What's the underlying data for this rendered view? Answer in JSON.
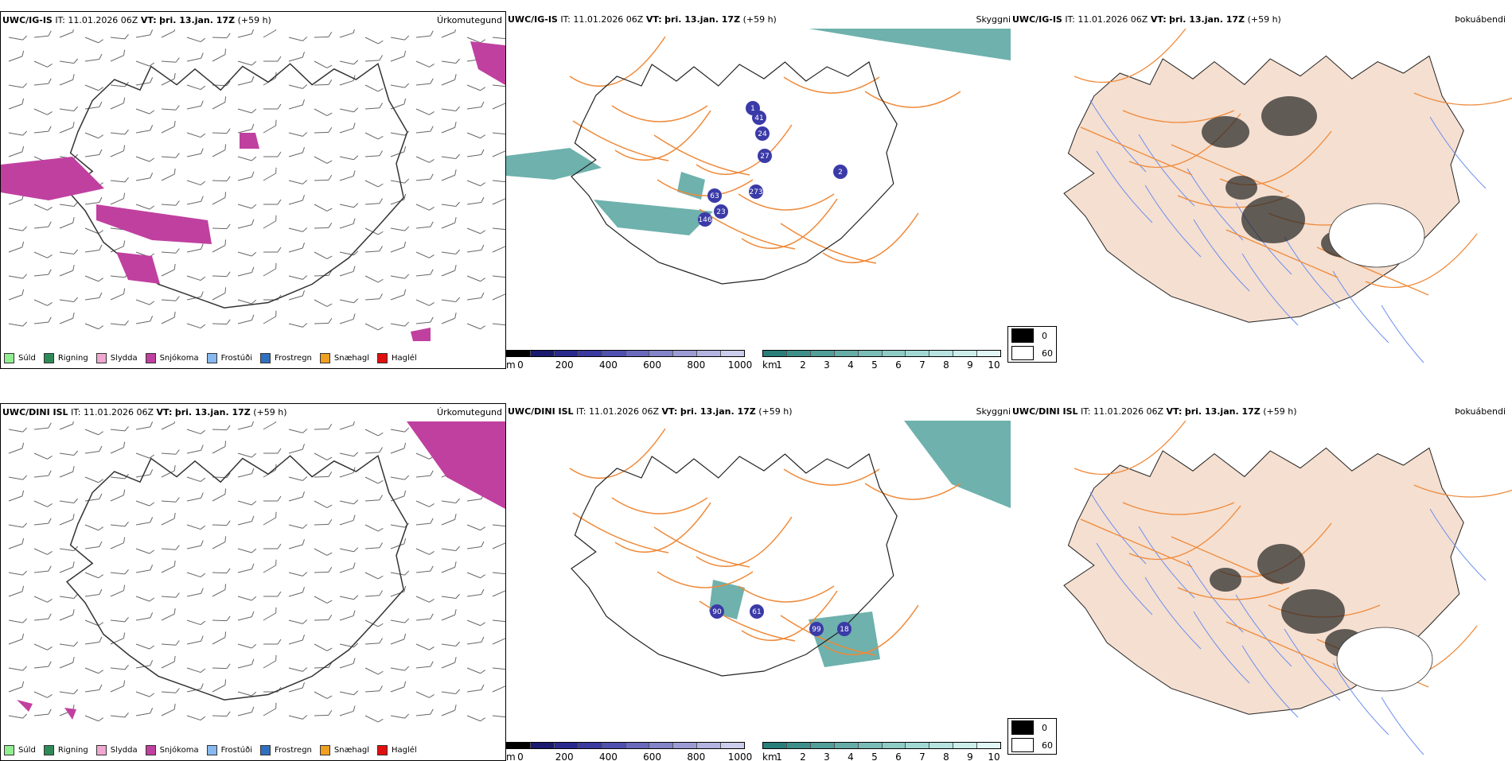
{
  "rows": [
    {
      "model": "UWC/IG-IS",
      "it_label": "IT:",
      "it": "11.01.2026 06Z",
      "vt_label": "VT:",
      "vt": "þri. 13.jan. 17Z",
      "lead": "(+59 h)",
      "titles": {
        "precip": "Úrkomutegund",
        "vis": "Skyggni",
        "cloud": "Þokuábendi"
      },
      "cloudtop_labels": [
        "1",
        "41",
        "24",
        "27",
        "63",
        "23",
        "146",
        "273",
        "2"
      ]
    },
    {
      "model": "UWC/DINI ISL",
      "it_label": "IT:",
      "it": "11.01.2026 06Z",
      "vt_label": "VT:",
      "vt": "þri. 13.jan. 17Z",
      "lead": "(+59 h)",
      "titles": {
        "precip": "Úrkomutegund",
        "vis": "Skyggni",
        "cloud": "Þokuábendi"
      },
      "cloudtop_labels": [
        "90",
        "61",
        "99",
        "18"
      ]
    }
  ],
  "precip_legend": [
    {
      "label": "Súld",
      "color": "#90ee90"
    },
    {
      "label": "Rigning",
      "color": "#2e8b57"
    },
    {
      "label": "Slydda",
      "color": "#f0a8d0"
    },
    {
      "label": "Snjókoma",
      "color": "#c040a0"
    },
    {
      "label": "Frostúði",
      "color": "#87b8f0"
    },
    {
      "label": "Frostregn",
      "color": "#3070c0"
    },
    {
      "label": "Snæhagl",
      "color": "#f0a020"
    },
    {
      "label": "Haglél",
      "color": "#e01010"
    }
  ],
  "cbar_m": {
    "unit": "m",
    "ticks": [
      "0",
      "200",
      "400",
      "600",
      "800",
      "1000"
    ],
    "colors": [
      "#000000",
      "#1a1a6e",
      "#2a2a8e",
      "#3a3aa0",
      "#5050b0",
      "#6a6abc",
      "#8484c8",
      "#9c9cd4",
      "#b4b4e0",
      "#ccccec"
    ]
  },
  "cbar_km": {
    "unit": "km",
    "ticks": [
      "1",
      "2",
      "3",
      "4",
      "5",
      "6",
      "7",
      "8",
      "9",
      "10"
    ],
    "colors": [
      "#2a7f7a",
      "#3e8f8a",
      "#529e99",
      "#66ada8",
      "#7abcb7",
      "#8ecbc6",
      "#a2d8d4",
      "#b6e3e0",
      "#cbeeeb",
      "#e2f7f5"
    ]
  },
  "fog_legend": [
    {
      "label": "0",
      "color": "#000000"
    },
    {
      "label": "60",
      "color": "#ffffff"
    }
  ],
  "colors": {
    "snow": "#c040a0",
    "teal": "#4a9e98",
    "road": "#ef8a3a",
    "land": "#f5dfd0",
    "river": "#6a8ef0",
    "cloudtop": "#3a3aa8"
  }
}
